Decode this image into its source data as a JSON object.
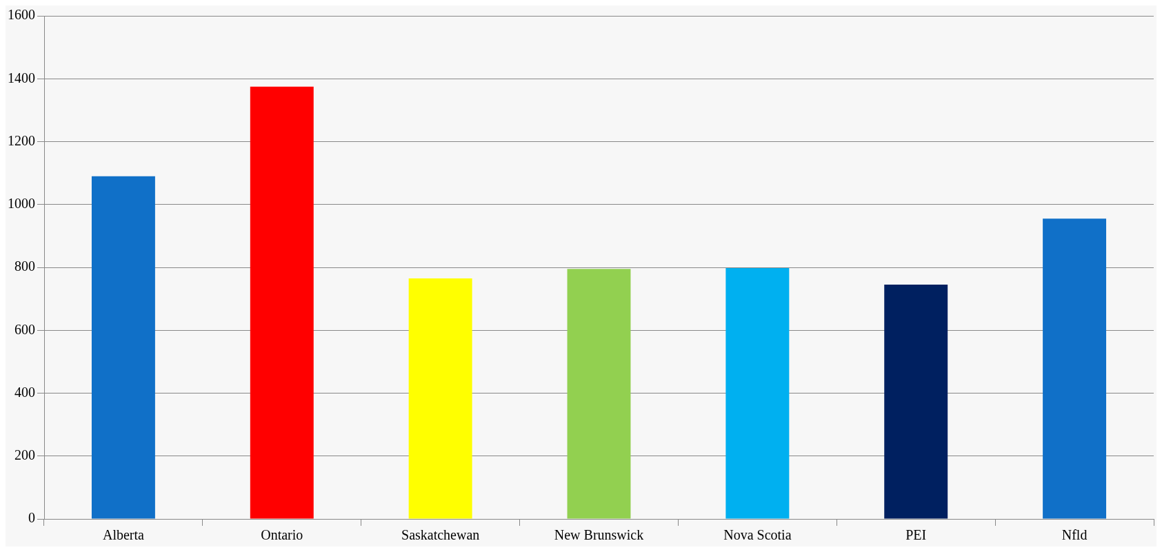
{
  "chart_data": {
    "type": "bar",
    "categories": [
      "Alberta",
      "Ontario",
      "Saskatchewan",
      "New Brunswick",
      "Nova Scotia",
      "PEI",
      "Nfld"
    ],
    "values": [
      1090,
      1375,
      765,
      795,
      798,
      745,
      955
    ],
    "colors": [
      "#1070c8",
      "#ff0000",
      "#ffff00",
      "#92d050",
      "#00b0f0",
      "#002060",
      "#1070c8"
    ],
    "ylim": [
      0,
      1600
    ],
    "yticks": [
      0,
      200,
      400,
      600,
      800,
      1000,
      1200,
      1400,
      1600
    ],
    "grid": "y",
    "legend": false
  }
}
